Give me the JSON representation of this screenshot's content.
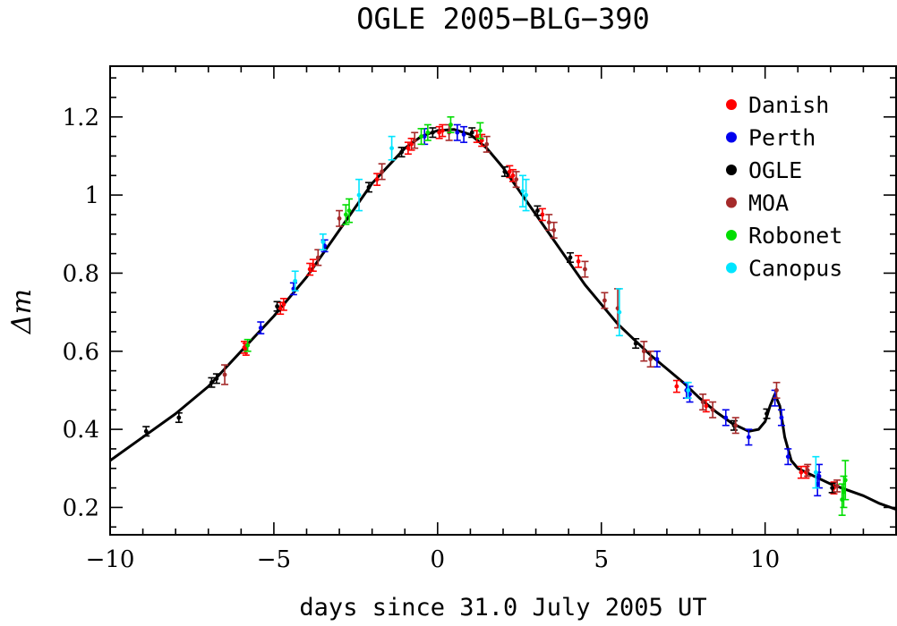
{
  "chart_data": {
    "type": "scatter",
    "title": "OGLE 2005−BLG−390",
    "xlabel": "days since 31.0 July 2005 UT",
    "ylabel": "Δm",
    "xlim": [
      -10,
      14
    ],
    "ylim": [
      0.13,
      1.33
    ],
    "x_ticks": [
      -10,
      -5,
      0,
      5,
      10
    ],
    "x_tick_labels": [
      "−10",
      "−5",
      "0",
      "5",
      "10"
    ],
    "y_ticks": [
      0.2,
      0.4,
      0.6,
      0.8,
      1,
      1.2
    ],
    "y_tick_labels": [
      "0.2",
      "0.4",
      "0.6",
      "0.8",
      "1",
      "1.2"
    ],
    "grid": false,
    "legend_position": "top-right",
    "model_curve": [
      [
        -10,
        0.32
      ],
      [
        -9,
        0.38
      ],
      [
        -8,
        0.44
      ],
      [
        -7,
        0.51
      ],
      [
        -6,
        0.6
      ],
      [
        -5,
        0.69
      ],
      [
        -4,
        0.79
      ],
      [
        -3,
        0.91
      ],
      [
        -2,
        1.03
      ],
      [
        -1,
        1.12
      ],
      [
        -0.5,
        1.15
      ],
      [
        0,
        1.165
      ],
      [
        0.5,
        1.168
      ],
      [
        1,
        1.155
      ],
      [
        1.5,
        1.12
      ],
      [
        2,
        1.07
      ],
      [
        2.5,
        1.01
      ],
      [
        3,
        0.95
      ],
      [
        3.5,
        0.89
      ],
      [
        4,
        0.83
      ],
      [
        4.5,
        0.77
      ],
      [
        5,
        0.72
      ],
      [
        5.5,
        0.67
      ],
      [
        6,
        0.63
      ],
      [
        6.5,
        0.59
      ],
      [
        7,
        0.555
      ],
      [
        7.5,
        0.52
      ],
      [
        8,
        0.48
      ],
      [
        8.5,
        0.445
      ],
      [
        9,
        0.415
      ],
      [
        9.5,
        0.395
      ],
      [
        9.8,
        0.4
      ],
      [
        10,
        0.42
      ],
      [
        10.15,
        0.46
      ],
      [
        10.3,
        0.49
      ],
      [
        10.45,
        0.46
      ],
      [
        10.6,
        0.38
      ],
      [
        10.8,
        0.32
      ],
      [
        11,
        0.3
      ],
      [
        11.5,
        0.28
      ],
      [
        12,
        0.26
      ],
      [
        12.5,
        0.245
      ],
      [
        13,
        0.23
      ],
      [
        13.5,
        0.21
      ],
      [
        14,
        0.195
      ]
    ],
    "series": [
      {
        "name": "Danish",
        "color": "#ff0000",
        "points": [
          [
            -5.9,
            0.61,
            0.015
          ],
          [
            -5.85,
            0.605,
            0.015
          ],
          [
            -4.8,
            0.71,
            0.015
          ],
          [
            -4.7,
            0.72,
            0.015
          ],
          [
            -3.9,
            0.81,
            0.015
          ],
          [
            -3.8,
            0.82,
            0.015
          ],
          [
            -1.85,
            1.04,
            0.015
          ],
          [
            -0.9,
            1.12,
            0.015
          ],
          [
            -0.8,
            1.13,
            0.015
          ],
          [
            0.05,
            1.16,
            0.015
          ],
          [
            0.15,
            1.165,
            0.015
          ],
          [
            1.2,
            1.15,
            0.015
          ],
          [
            1.35,
            1.14,
            0.015
          ],
          [
            2.2,
            1.06,
            0.015
          ],
          [
            2.3,
            1.05,
            0.015
          ],
          [
            3.2,
            0.95,
            0.015
          ],
          [
            4.3,
            0.83,
            0.015
          ],
          [
            7.3,
            0.51,
            0.015
          ],
          [
            8.2,
            0.46,
            0.015
          ],
          [
            11.1,
            0.29,
            0.015
          ],
          [
            11.25,
            0.29,
            0.015
          ],
          [
            12.1,
            0.25,
            0.015
          ]
        ]
      },
      {
        "name": "Perth",
        "color": "#0000ee",
        "points": [
          [
            -5.4,
            0.66,
            0.015
          ],
          [
            -4.4,
            0.76,
            0.015
          ],
          [
            -3.45,
            0.87,
            0.015
          ],
          [
            -0.4,
            1.15,
            0.02
          ],
          [
            0.6,
            1.16,
            0.02
          ],
          [
            0.8,
            1.155,
            0.02
          ],
          [
            6.7,
            0.58,
            0.02
          ],
          [
            7.6,
            0.5,
            0.02
          ],
          [
            7.7,
            0.49,
            0.02
          ],
          [
            8.8,
            0.43,
            0.02
          ],
          [
            9.5,
            0.38,
            0.02
          ],
          [
            10.3,
            0.48,
            0.02
          ],
          [
            10.5,
            0.43,
            0.02
          ],
          [
            10.7,
            0.33,
            0.02
          ],
          [
            11.6,
            0.26,
            0.03
          ],
          [
            11.65,
            0.28,
            0.03
          ]
        ]
      },
      {
        "name": "OGLE",
        "color": "#000000",
        "points": [
          [
            -8.9,
            0.395,
            0.012
          ],
          [
            -7.9,
            0.43,
            0.012
          ],
          [
            -6.9,
            0.52,
            0.012
          ],
          [
            -6.75,
            0.53,
            0.012
          ],
          [
            -4.9,
            0.715,
            0.012
          ],
          [
            -2.1,
            1.02,
            0.012
          ],
          [
            -1.1,
            1.11,
            0.012
          ],
          [
            -0.15,
            1.16,
            0.012
          ],
          [
            1.05,
            1.16,
            0.012
          ],
          [
            2.05,
            1.06,
            0.012
          ],
          [
            3.05,
            0.96,
            0.012
          ],
          [
            4.05,
            0.84,
            0.012
          ],
          [
            6.05,
            0.62,
            0.012
          ],
          [
            9.05,
            0.41,
            0.012
          ],
          [
            10.05,
            0.44,
            0.012
          ],
          [
            12.05,
            0.25,
            0.012
          ]
        ]
      },
      {
        "name": "MOA",
        "color": "#a52a2a",
        "points": [
          [
            -6.5,
            0.54,
            0.025
          ],
          [
            -3.65,
            0.84,
            0.02
          ],
          [
            -3.0,
            0.94,
            0.02
          ],
          [
            -1.7,
            1.06,
            0.02
          ],
          [
            -0.7,
            1.14,
            0.02
          ],
          [
            0.35,
            1.16,
            0.02
          ],
          [
            1.5,
            1.13,
            0.02
          ],
          [
            2.4,
            1.04,
            0.02
          ],
          [
            3.4,
            0.93,
            0.02
          ],
          [
            3.55,
            0.91,
            0.02
          ],
          [
            4.5,
            0.81,
            0.02
          ],
          [
            5.1,
            0.73,
            0.02
          ],
          [
            5.5,
            0.71,
            0.05
          ],
          [
            6.3,
            0.6,
            0.025
          ],
          [
            6.5,
            0.58,
            0.02
          ],
          [
            8.1,
            0.47,
            0.02
          ],
          [
            8.4,
            0.45,
            0.02
          ],
          [
            9.1,
            0.41,
            0.02
          ],
          [
            10.35,
            0.5,
            0.02
          ],
          [
            11.3,
            0.295,
            0.015
          ],
          [
            12.2,
            0.255,
            0.015
          ]
        ]
      },
      {
        "name": "Robonet",
        "color": "#00dd00",
        "points": [
          [
            -5.8,
            0.615,
            0.015
          ],
          [
            -2.8,
            0.95,
            0.025
          ],
          [
            -2.7,
            0.96,
            0.03
          ],
          [
            -0.5,
            1.15,
            0.02
          ],
          [
            -0.3,
            1.16,
            0.02
          ],
          [
            0.4,
            1.18,
            0.02
          ],
          [
            1.3,
            1.165,
            0.02
          ],
          [
            12.35,
            0.22,
            0.04
          ],
          [
            12.4,
            0.24,
            0.04
          ],
          [
            12.45,
            0.27,
            0.05
          ]
        ]
      },
      {
        "name": "Canopus",
        "color": "#00e5ff",
        "points": [
          [
            -4.35,
            0.78,
            0.025
          ],
          [
            -3.5,
            0.88,
            0.02
          ],
          [
            -2.4,
            1.0,
            0.04
          ],
          [
            -1.4,
            1.12,
            0.03
          ],
          [
            2.6,
            1.01,
            0.04
          ],
          [
            2.7,
            1.0,
            0.04
          ],
          [
            5.55,
            0.7,
            0.06
          ],
          [
            7.65,
            0.5,
            0.02
          ],
          [
            11.55,
            0.29,
            0.04
          ]
        ]
      }
    ]
  }
}
